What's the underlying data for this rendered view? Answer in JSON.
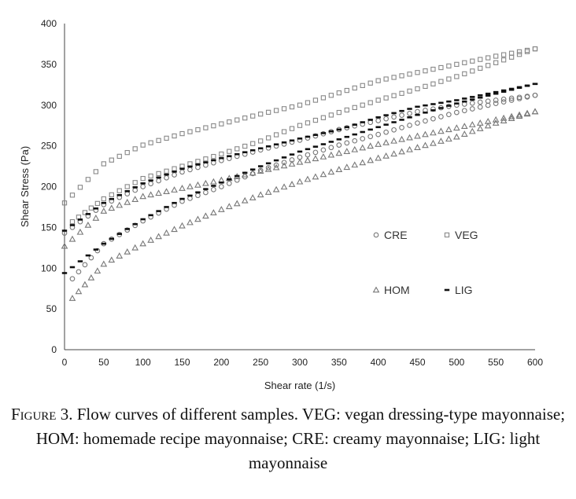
{
  "chart_data": {
    "type": "scatter",
    "xlabel": "Shear rate (1/s)",
    "ylabel": "Shear Stress (Pa)",
    "xlim": [
      0,
      600
    ],
    "ylim": [
      0,
      400
    ],
    "x_ticks": [
      0,
      50,
      100,
      150,
      200,
      250,
      300,
      350,
      400,
      450,
      500,
      550,
      600
    ],
    "y_ticks": [
      0,
      50,
      100,
      150,
      200,
      250,
      300,
      350,
      400
    ],
    "grid": false,
    "legend_position": "center-right",
    "series": [
      {
        "name": "CRE",
        "marker": "circle",
        "color": "#777777",
        "ascending": {
          "x": [
            0,
            50,
            100,
            150,
            200,
            250,
            300,
            350,
            400,
            450,
            500,
            550,
            600
          ],
          "y": [
            143,
            178,
            200,
            218,
            232,
            245,
            257,
            270,
            281,
            292,
            300,
            306,
            312
          ]
        },
        "descending": {
          "x": [
            10,
            50,
            100,
            150,
            200,
            250,
            300,
            350,
            400,
            450,
            500,
            550,
            600
          ],
          "y": [
            87,
            130,
            158,
            182,
            200,
            220,
            236,
            251,
            264,
            278,
            291,
            302,
            312
          ]
        }
      },
      {
        "name": "VEG",
        "marker": "square",
        "color": "#888888",
        "ascending": {
          "x": [
            0,
            50,
            100,
            150,
            200,
            250,
            300,
            350,
            400,
            450,
            500,
            550,
            600
          ],
          "y": [
            180,
            228,
            251,
            265,
            277,
            289,
            300,
            315,
            330,
            340,
            350,
            360,
            369
          ]
        },
        "descending": {
          "x": [
            10,
            50,
            100,
            150,
            200,
            250,
            300,
            350,
            400,
            450,
            500,
            550,
            600
          ],
          "y": [
            157,
            185,
            210,
            225,
            240,
            256,
            275,
            291,
            306,
            320,
            335,
            352,
            369
          ]
        }
      },
      {
        "name": "HOM",
        "marker": "triangle",
        "color": "#777777",
        "ascending": {
          "x": [
            0,
            50,
            100,
            150,
            200,
            250,
            300,
            350,
            400,
            450,
            500,
            550,
            600
          ],
          "y": [
            127,
            170,
            188,
            198,
            208,
            219,
            230,
            241,
            252,
            262,
            272,
            282,
            292
          ]
        },
        "descending": {
          "x": [
            10,
            50,
            100,
            150,
            200,
            250,
            300,
            350,
            400,
            450,
            500,
            550,
            600
          ],
          "y": [
            63,
            105,
            130,
            152,
            172,
            190,
            206,
            221,
            235,
            248,
            261,
            278,
            292
          ]
        }
      },
      {
        "name": "LIG",
        "marker": "dash",
        "color": "#111111",
        "ascending": {
          "x": [
            0,
            50,
            100,
            150,
            200,
            250,
            300,
            350,
            400,
            450,
            500,
            550,
            600
          ],
          "y": [
            146,
            180,
            204,
            222,
            235,
            247,
            259,
            270,
            285,
            298,
            306,
            316,
            326
          ]
        },
        "descending": {
          "x": [
            0,
            50,
            100,
            150,
            200,
            250,
            300,
            350,
            400,
            450,
            500,
            550,
            600
          ],
          "y": [
            94,
            130,
            160,
            185,
            205,
            225,
            243,
            258,
            273,
            288,
            302,
            314,
            326
          ]
        }
      }
    ]
  },
  "caption": {
    "label": "Figure 3.",
    "text": " Flow curves of different samples. VEG: vegan dressing-type mayonnaise; HOM: homemade recipe mayonnaise; CRE: creamy mayonnaise; LIG: light mayonnaise"
  }
}
